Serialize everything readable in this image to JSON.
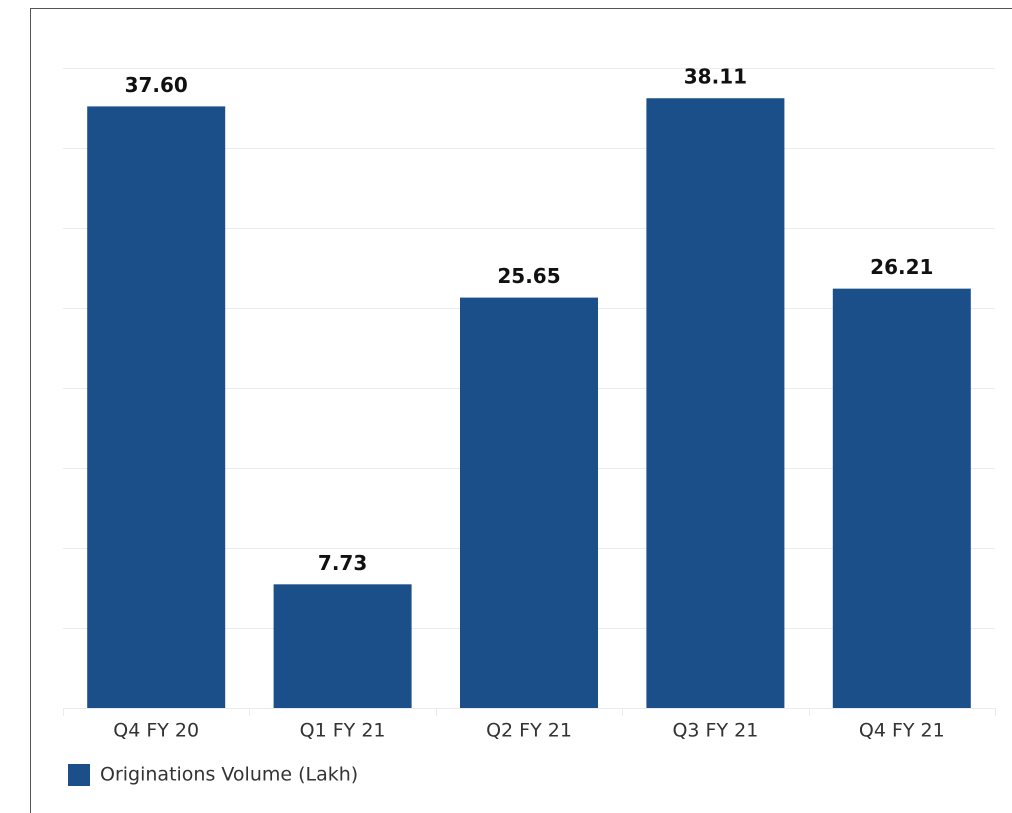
{
  "chart_data": {
    "type": "bar",
    "categories": [
      "Q4 FY 20",
      "Q1 FY 21",
      "Q2 FY 21",
      "Q3 FY 21",
      "Q4 FY 21"
    ],
    "series": [
      {
        "name": "Originations Volume (Lakh)",
        "color": "#1b4f8a",
        "values": [
          37.6,
          7.73,
          25.65,
          38.11,
          26.21
        ],
        "value_labels": [
          "37.60",
          "7.73",
          "25.65",
          "38.11",
          "26.21"
        ]
      }
    ],
    "ylim": [
      0,
      40
    ],
    "yticks": [
      0,
      5,
      10,
      15,
      20,
      25,
      30,
      35,
      40
    ],
    "grid": true,
    "legend": "bottom-left"
  }
}
